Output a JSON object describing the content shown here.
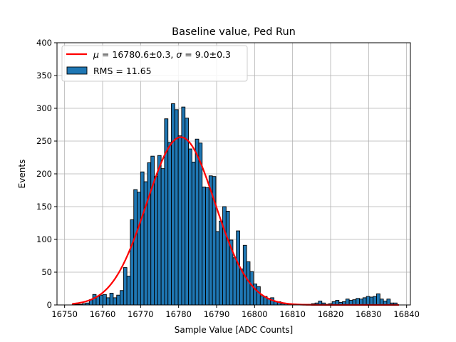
{
  "chart_data": {
    "type": "bar",
    "title": "Baseline value, Ped Run",
    "xlabel": "Sample Value [ADC Counts]",
    "ylabel": "Events",
    "xlim": [
      16748,
      16841
    ],
    "ylim": [
      0,
      400
    ],
    "xticks": [
      16750,
      16760,
      16770,
      16780,
      16790,
      16800,
      16810,
      16820,
      16830,
      16840
    ],
    "yticks": [
      0,
      50,
      100,
      150,
      200,
      250,
      300,
      350,
      400
    ],
    "grid": true,
    "legend_position": "top-left",
    "bin_width": 0.9,
    "series": [
      {
        "name": "RMS = 11.65",
        "kind": "histogram",
        "color": "#1f77b4",
        "bin_starts": [
          16752.0,
          16752.9,
          16753.8,
          16754.7,
          16755.6,
          16756.5,
          16757.4,
          16758.3,
          16759.2,
          16760.1,
          16761.0,
          16761.9,
          16762.8,
          16763.7,
          16764.6,
          16765.5,
          16766.4,
          16767.3,
          16768.2,
          16769.1,
          16770.0,
          16770.9,
          16771.8,
          16772.7,
          16773.6,
          16774.5,
          16775.4,
          16776.3,
          16777.2,
          16778.1,
          16779.0,
          16779.9,
          16780.8,
          16781.7,
          16782.6,
          16783.5,
          16784.4,
          16785.3,
          16786.2,
          16787.1,
          16788.0,
          16788.9,
          16789.8,
          16790.7,
          16791.6,
          16792.5,
          16793.4,
          16794.3,
          16795.2,
          16796.1,
          16797.0,
          16797.9,
          16798.8,
          16799.7,
          16800.6,
          16801.5,
          16802.4,
          16803.3,
          16804.2,
          16805.1,
          16806.0,
          16806.9,
          16807.8,
          16808.7,
          16809.6,
          16810.5,
          16811.4,
          16812.3,
          16813.2,
          16814.1,
          16815.0,
          16815.9,
          16816.8,
          16817.7,
          16818.6,
          16819.5,
          16820.4,
          16821.3,
          16822.2,
          16823.1,
          16824.0,
          16824.9,
          16825.8,
          16826.7,
          16827.6,
          16828.5,
          16829.4,
          16830.3,
          16831.2,
          16832.1,
          16833.0,
          16833.9,
          16834.8,
          16835.7,
          16836.6,
          16837.5
        ],
        "counts": [
          1,
          1,
          1,
          2,
          3,
          8,
          16,
          13,
          15,
          16,
          11,
          18,
          11,
          15,
          22,
          57,
          44,
          130,
          176,
          172,
          203,
          188,
          217,
          227,
          196,
          228,
          208,
          284,
          248,
          307,
          298,
          258,
          302,
          285,
          238,
          218,
          253,
          247,
          180,
          179,
          197,
          196,
          112,
          128,
          150,
          143,
          99,
          72,
          113,
          55,
          91,
          66,
          51,
          32,
          28,
          14,
          13,
          10,
          11,
          5,
          5,
          2,
          2,
          2,
          1,
          1,
          1,
          1,
          1,
          1,
          2,
          3,
          6,
          3,
          1,
          2,
          5,
          7,
          4,
          5,
          9,
          7,
          8,
          10,
          9,
          11,
          13,
          12,
          13,
          17,
          9,
          6,
          9,
          3,
          3,
          0
        ]
      },
      {
        "name": "μ = 16780.6±0.3, σ = 9.0±0.3",
        "kind": "gaussian_fit",
        "color": "#ff0000",
        "mu": 16780.6,
        "sigma": 9.0,
        "amplitude": 256,
        "x_range": [
          16752,
          16838
        ]
      }
    ],
    "legend": [
      {
        "label_mu": "μ",
        "label_mid": " = 16780.6±0.3, ",
        "label_sigma": "σ",
        "label_end": " = 9.0±0.3"
      },
      {
        "label": "RMS = 11.65"
      }
    ]
  }
}
